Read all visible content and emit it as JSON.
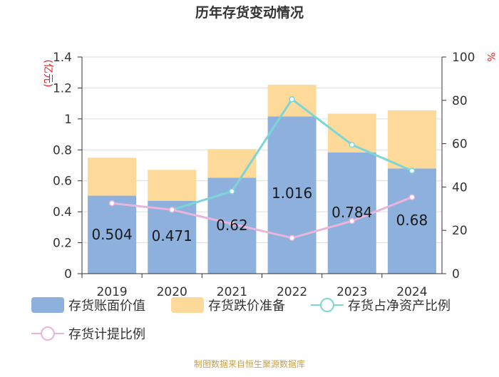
{
  "chart_data": {
    "type": "bar",
    "title": "历年存货变动情况",
    "categories": [
      "2019",
      "2020",
      "2021",
      "2022",
      "2023",
      "2024"
    ],
    "y_left": {
      "label": "(亿元)",
      "ticks": [
        "0",
        "0.2",
        "0.4",
        "0.6",
        "0.8",
        "1",
        "1.2",
        "1.4"
      ],
      "ylim": [
        0,
        1.4
      ]
    },
    "y_right": {
      "label": "%",
      "ticks": [
        "0",
        "20",
        "40",
        "60",
        "80",
        "100"
      ],
      "ylim": [
        0,
        100
      ]
    },
    "stacked": true,
    "series": [
      {
        "name": "存货账面价值",
        "type": "bar",
        "axis": "left",
        "values": [
          0.504,
          0.471,
          0.62,
          1.016,
          0.784,
          0.68
        ],
        "data_labels": [
          "0.504",
          "0.471",
          "0.62",
          "1.016",
          "0.784",
          "0.68"
        ]
      },
      {
        "name": "存货跌价准备",
        "type": "bar",
        "axis": "left",
        "values": [
          0.245,
          0.2,
          0.185,
          0.205,
          0.25,
          0.375
        ]
      },
      {
        "name": "存货占净资产比例",
        "type": "line",
        "axis": "right",
        "values": [
          null,
          29.5,
          38,
          80.5,
          59.5,
          47.5
        ]
      },
      {
        "name": "存货计提比例",
        "type": "line",
        "axis": "right",
        "values": [
          32.5,
          29.5,
          23,
          16.5,
          24.3,
          35.3
        ]
      }
    ],
    "colors": {
      "存货账面价值": "#8eb0dc",
      "存货跌价准备": "#fdd99a",
      "存货占净资产比例": "#7dd6d6",
      "存货计提比例": "#e9b5dc",
      "axis_label": "#e02020",
      "grid": "#dddddd",
      "axis": "#333333"
    },
    "legend_position": "bottom",
    "grid": true,
    "source": "制图数据来自恒生聚源数据库"
  }
}
